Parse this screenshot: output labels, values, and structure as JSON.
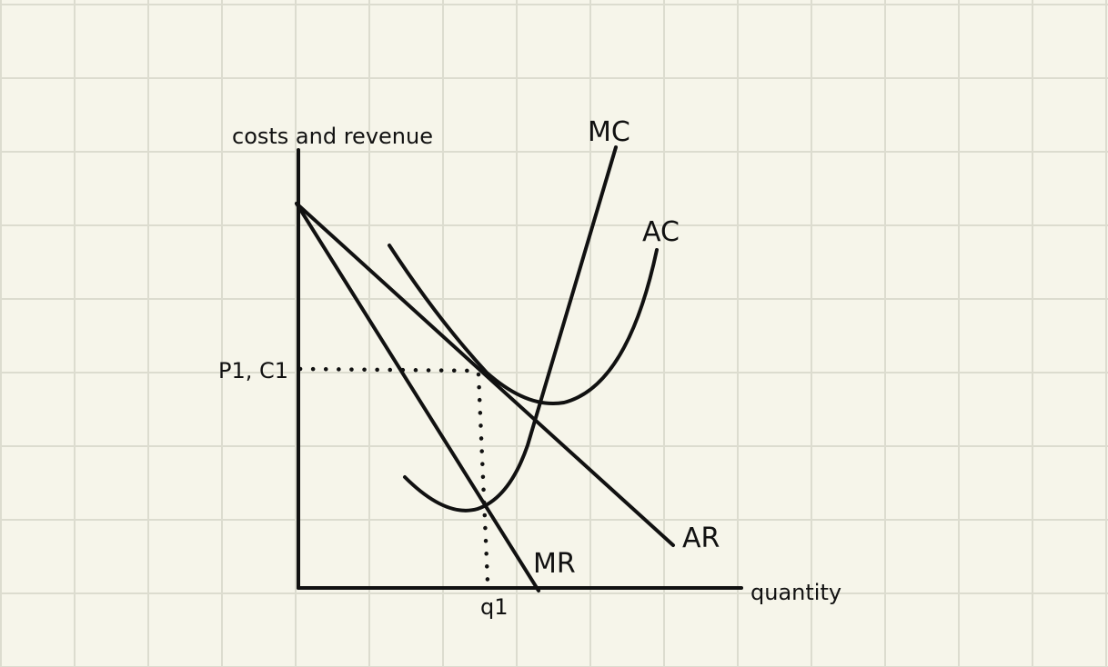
{
  "diagram": {
    "y_axis_label": "costs and revenue",
    "x_axis_label": "quantity",
    "price_cost_label": "P1, C1",
    "quantity_label": "q1",
    "curves": {
      "mc": "MC",
      "ac": "AC",
      "ar": "AR",
      "mr": "MR"
    }
  }
}
